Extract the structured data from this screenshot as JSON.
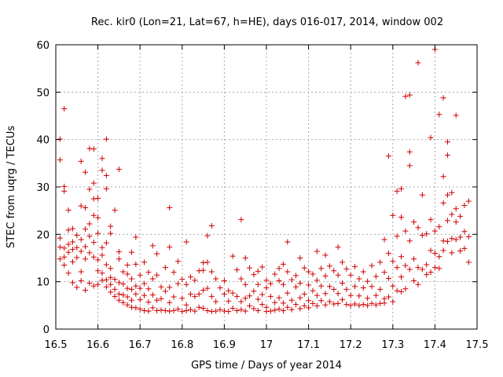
{
  "chart_data": {
    "type": "scatter",
    "title": "Rec. kir0 (Lon=21, Lat=67, h=HE), days 016-017, 2014, window 002",
    "xlabel": "GPS time / Days of year 2014",
    "ylabel": "STEC from uqrg / TECUs",
    "xlim": [
      16.5,
      17.5
    ],
    "ylim": [
      0,
      60
    ],
    "xticks": [
      "16.5",
      "16.6",
      "16.7",
      "16.8",
      "16.9",
      "17",
      "17.1",
      "17.2",
      "17.3",
      "17.4",
      "17.5"
    ],
    "yticks": [
      "0",
      "10",
      "20",
      "30",
      "40",
      "50",
      "60"
    ],
    "grid": true,
    "marker": "plus",
    "color": "#d00000",
    "points": [
      [
        16.51,
        35.7
      ],
      [
        16.51,
        40.1
      ],
      [
        16.51,
        19.2
      ],
      [
        16.51,
        17.3
      ],
      [
        16.51,
        14.8
      ],
      [
        16.52,
        46.5
      ],
      [
        16.52,
        30.1
      ],
      [
        16.52,
        29.1
      ],
      [
        16.52,
        17.1
      ],
      [
        16.52,
        15.2
      ],
      [
        16.52,
        13.5
      ],
      [
        16.53,
        25.1
      ],
      [
        16.53,
        20.9
      ],
      [
        16.53,
        17.9
      ],
      [
        16.53,
        16.2
      ],
      [
        16.53,
        11.8
      ],
      [
        16.54,
        21.2
      ],
      [
        16.54,
        18.4
      ],
      [
        16.54,
        16.8
      ],
      [
        16.54,
        14.2
      ],
      [
        16.54,
        9.8
      ],
      [
        16.55,
        19.8
      ],
      [
        16.55,
        17.2
      ],
      [
        16.55,
        15.1
      ],
      [
        16.55,
        8.8
      ],
      [
        16.56,
        35.4
      ],
      [
        16.56,
        26.0
      ],
      [
        16.56,
        18.9
      ],
      [
        16.56,
        16.4
      ],
      [
        16.56,
        12.1
      ],
      [
        16.56,
        10.2
      ],
      [
        16.57,
        33.1
      ],
      [
        16.57,
        25.6
      ],
      [
        16.57,
        21.1
      ],
      [
        16.57,
        17.4
      ],
      [
        16.57,
        14.8
      ],
      [
        16.57,
        8.2
      ],
      [
        16.58,
        38.1
      ],
      [
        16.58,
        29.5
      ],
      [
        16.58,
        22.2
      ],
      [
        16.58,
        19.6
      ],
      [
        16.58,
        16.1
      ],
      [
        16.58,
        9.7
      ],
      [
        16.59,
        38.0
      ],
      [
        16.59,
        30.8
      ],
      [
        16.59,
        27.5
      ],
      [
        16.59,
        24.0
      ],
      [
        16.59,
        18.3
      ],
      [
        16.59,
        15.2
      ],
      [
        16.59,
        9.1
      ],
      [
        16.6,
        27.6
      ],
      [
        16.6,
        23.5
      ],
      [
        16.6,
        20.2
      ],
      [
        16.6,
        14.6
      ],
      [
        16.6,
        12.3
      ],
      [
        16.6,
        9.4
      ],
      [
        16.61,
        36.0
      ],
      [
        16.61,
        33.5
      ],
      [
        16.61,
        17.2
      ],
      [
        16.61,
        15.6
      ],
      [
        16.61,
        11.8
      ],
      [
        16.61,
        10.3
      ],
      [
        16.62,
        40.1
      ],
      [
        16.62,
        32.4
      ],
      [
        16.62,
        29.6
      ],
      [
        16.62,
        18.2
      ],
      [
        16.62,
        13.6
      ],
      [
        16.62,
        10.4
      ],
      [
        16.62,
        8.9
      ],
      [
        16.63,
        21.7
      ],
      [
        16.63,
        20.2
      ],
      [
        16.63,
        12.8
      ],
      [
        16.63,
        10.9
      ],
      [
        16.63,
        9.4
      ],
      [
        16.63,
        7.8
      ],
      [
        16.64,
        25.1
      ],
      [
        16.64,
        10.5
      ],
      [
        16.64,
        8.4
      ],
      [
        16.64,
        6.9
      ],
      [
        16.65,
        33.7
      ],
      [
        16.65,
        16.3
      ],
      [
        16.65,
        14.8
      ],
      [
        16.65,
        9.8
      ],
      [
        16.65,
        7.4
      ],
      [
        16.65,
        6.1
      ],
      [
        16.66,
        12.1
      ],
      [
        16.66,
        9.5
      ],
      [
        16.66,
        7.2
      ],
      [
        16.66,
        5.6
      ],
      [
        16.67,
        13.5
      ],
      [
        16.67,
        11.6
      ],
      [
        16.67,
        8.6
      ],
      [
        16.67,
        6.8
      ],
      [
        16.67,
        5.1
      ],
      [
        16.68,
        16.2
      ],
      [
        16.68,
        10.6
      ],
      [
        16.68,
        8.4
      ],
      [
        16.68,
        6.1
      ],
      [
        16.68,
        4.6
      ],
      [
        16.69,
        19.4
      ],
      [
        16.69,
        13.7
      ],
      [
        16.69,
        9.1
      ],
      [
        16.69,
        7.4
      ],
      [
        16.69,
        4.5
      ],
      [
        16.7,
        11.4
      ],
      [
        16.7,
        8.6
      ],
      [
        16.7,
        6.2
      ],
      [
        16.7,
        4.2
      ],
      [
        16.71,
        14.1
      ],
      [
        16.71,
        9.6
      ],
      [
        16.71,
        7.1
      ],
      [
        16.71,
        3.9
      ],
      [
        16.72,
        12.0
      ],
      [
        16.72,
        8.5
      ],
      [
        16.72,
        5.7
      ],
      [
        16.72,
        3.8
      ],
      [
        16.73,
        17.6
      ],
      [
        16.73,
        10.6
      ],
      [
        16.73,
        7.2
      ],
      [
        16.73,
        4.5
      ],
      [
        16.74,
        15.9
      ],
      [
        16.74,
        11.4
      ],
      [
        16.74,
        6.1
      ],
      [
        16.74,
        3.9
      ],
      [
        16.75,
        8.9
      ],
      [
        16.75,
        6.4
      ],
      [
        16.75,
        4.0
      ],
      [
        16.76,
        13.0
      ],
      [
        16.76,
        8.0
      ],
      [
        16.76,
        3.9
      ],
      [
        16.77,
        25.6
      ],
      [
        16.77,
        17.3
      ],
      [
        16.77,
        8.8
      ],
      [
        16.77,
        5.6
      ],
      [
        16.77,
        3.8
      ],
      [
        16.78,
        12.0
      ],
      [
        16.78,
        6.8
      ],
      [
        16.78,
        3.9
      ],
      [
        16.79,
        14.3
      ],
      [
        16.79,
        9.6
      ],
      [
        16.79,
        4.2
      ],
      [
        16.8,
        10.5
      ],
      [
        16.8,
        6.5
      ],
      [
        16.8,
        3.7
      ],
      [
        16.81,
        18.4
      ],
      [
        16.81,
        9.4
      ],
      [
        16.81,
        5.1
      ],
      [
        16.81,
        3.9
      ],
      [
        16.82,
        11.0
      ],
      [
        16.82,
        7.4
      ],
      [
        16.82,
        4.1
      ],
      [
        16.83,
        10.3
      ],
      [
        16.83,
        6.9
      ],
      [
        16.83,
        3.8
      ],
      [
        16.84,
        12.3
      ],
      [
        16.84,
        7.4
      ],
      [
        16.84,
        4.6
      ],
      [
        16.85,
        14.0
      ],
      [
        16.85,
        12.4
      ],
      [
        16.85,
        8.2
      ],
      [
        16.85,
        4.4
      ],
      [
        16.86,
        19.7
      ],
      [
        16.86,
        14.1
      ],
      [
        16.86,
        8.6
      ],
      [
        16.86,
        3.9
      ],
      [
        16.87,
        21.8
      ],
      [
        16.87,
        12.1
      ],
      [
        16.87,
        6.9
      ],
      [
        16.87,
        3.7
      ],
      [
        16.88,
        10.6
      ],
      [
        16.88,
        5.8
      ],
      [
        16.88,
        3.8
      ],
      [
        16.89,
        8.7
      ],
      [
        16.89,
        4.1
      ],
      [
        16.9,
        10.2
      ],
      [
        16.9,
        7.4
      ],
      [
        16.9,
        3.8
      ],
      [
        16.91,
        8.1
      ],
      [
        16.91,
        5.9
      ],
      [
        16.91,
        3.7
      ],
      [
        16.92,
        15.4
      ],
      [
        16.92,
        7.6
      ],
      [
        16.92,
        4.4
      ],
      [
        16.93,
        12.5
      ],
      [
        16.93,
        6.9
      ],
      [
        16.93,
        3.9
      ],
      [
        16.94,
        23.1
      ],
      [
        16.94,
        10.6
      ],
      [
        16.94,
        5.8
      ],
      [
        16.94,
        4.1
      ],
      [
        16.95,
        15.0
      ],
      [
        16.95,
        9.4
      ],
      [
        16.95,
        6.5
      ],
      [
        16.95,
        3.8
      ],
      [
        16.96,
        12.9
      ],
      [
        16.96,
        7.0
      ],
      [
        16.96,
        4.9
      ],
      [
        16.97,
        11.5
      ],
      [
        16.97,
        8.0
      ],
      [
        16.97,
        4.3
      ],
      [
        16.98,
        12.2
      ],
      [
        16.98,
        9.4
      ],
      [
        16.98,
        6.3
      ],
      [
        16.98,
        3.9
      ],
      [
        16.99,
        13.1
      ],
      [
        16.99,
        7.3
      ],
      [
        16.99,
        5.2
      ],
      [
        17.0,
        10.3
      ],
      [
        17.0,
        8.7
      ],
      [
        17.0,
        4.6
      ],
      [
        17.0,
        3.7
      ],
      [
        17.01,
        9.6
      ],
      [
        17.01,
        6.9
      ],
      [
        17.01,
        3.8
      ],
      [
        17.02,
        11.6
      ],
      [
        17.02,
        5.6
      ],
      [
        17.02,
        4.0
      ],
      [
        17.03,
        12.8
      ],
      [
        17.03,
        10.2
      ],
      [
        17.03,
        6.6
      ],
      [
        17.03,
        4.2
      ],
      [
        17.04,
        13.7
      ],
      [
        17.04,
        9.4
      ],
      [
        17.04,
        5.5
      ],
      [
        17.04,
        3.9
      ],
      [
        17.05,
        18.4
      ],
      [
        17.05,
        12.1
      ],
      [
        17.05,
        7.6
      ],
      [
        17.05,
        4.6
      ],
      [
        17.06,
        10.4
      ],
      [
        17.06,
        6.1
      ],
      [
        17.06,
        4.1
      ],
      [
        17.07,
        11.3
      ],
      [
        17.07,
        8.9
      ],
      [
        17.07,
        5.2
      ],
      [
        17.08,
        15.0
      ],
      [
        17.08,
        9.7
      ],
      [
        17.08,
        6.6
      ],
      [
        17.08,
        4.3
      ],
      [
        17.09,
        12.9
      ],
      [
        17.09,
        7.4
      ],
      [
        17.09,
        4.9
      ],
      [
        17.1,
        12.1
      ],
      [
        17.1,
        9.3
      ],
      [
        17.1,
        6.0
      ],
      [
        17.1,
        4.5
      ],
      [
        17.11,
        11.6
      ],
      [
        17.11,
        8.1
      ],
      [
        17.11,
        5.4
      ],
      [
        17.12,
        16.4
      ],
      [
        17.12,
        10.3
      ],
      [
        17.12,
        7.1
      ],
      [
        17.12,
        4.9
      ],
      [
        17.13,
        12.8
      ],
      [
        17.13,
        9.1
      ],
      [
        17.13,
        6.0
      ],
      [
        17.14,
        15.6
      ],
      [
        17.14,
        11.2
      ],
      [
        17.14,
        7.5
      ],
      [
        17.14,
        5.1
      ],
      [
        17.15,
        13.3
      ],
      [
        17.15,
        9.0
      ],
      [
        17.15,
        5.8
      ],
      [
        17.16,
        12.3
      ],
      [
        17.16,
        8.4
      ],
      [
        17.16,
        5.3
      ],
      [
        17.17,
        17.3
      ],
      [
        17.17,
        11.4
      ],
      [
        17.17,
        7.5
      ],
      [
        17.17,
        5.4
      ],
      [
        17.18,
        14.1
      ],
      [
        17.18,
        9.7
      ],
      [
        17.18,
        6.2
      ],
      [
        17.19,
        12.7
      ],
      [
        17.19,
        8.4
      ],
      [
        17.19,
        5.2
      ],
      [
        17.2,
        11.4
      ],
      [
        17.2,
        7.1
      ],
      [
        17.2,
        5.0
      ],
      [
        17.21,
        13.2
      ],
      [
        17.21,
        9.0
      ],
      [
        17.21,
        5.3
      ],
      [
        17.22,
        10.6
      ],
      [
        17.22,
        7.0
      ],
      [
        17.22,
        5.0
      ],
      [
        17.23,
        12.1
      ],
      [
        17.23,
        8.7
      ],
      [
        17.23,
        5.2
      ],
      [
        17.24,
        10.1
      ],
      [
        17.24,
        6.5
      ],
      [
        17.24,
        5.0
      ],
      [
        17.25,
        13.4
      ],
      [
        17.25,
        9.0
      ],
      [
        17.25,
        5.4
      ],
      [
        17.26,
        11.1
      ],
      [
        17.26,
        7.1
      ],
      [
        17.26,
        5.1
      ],
      [
        17.27,
        14.1
      ],
      [
        17.27,
        8.4
      ],
      [
        17.27,
        5.4
      ],
      [
        17.28,
        18.9
      ],
      [
        17.28,
        12.0
      ],
      [
        17.28,
        6.4
      ],
      [
        17.28,
        5.5
      ],
      [
        17.29,
        36.5
      ],
      [
        17.29,
        16.0
      ],
      [
        17.29,
        10.7
      ],
      [
        17.29,
        6.8
      ],
      [
        17.3,
        24.0
      ],
      [
        17.3,
        14.3
      ],
      [
        17.3,
        9.1
      ],
      [
        17.3,
        5.8
      ],
      [
        17.31,
        29.1
      ],
      [
        17.31,
        19.6
      ],
      [
        17.31,
        13.0
      ],
      [
        17.31,
        8.1
      ],
      [
        17.32,
        29.6
      ],
      [
        17.32,
        23.6
      ],
      [
        17.32,
        15.3
      ],
      [
        17.32,
        11.0
      ],
      [
        17.32,
        7.9
      ],
      [
        17.33,
        49.1
      ],
      [
        17.33,
        20.7
      ],
      [
        17.33,
        13.4
      ],
      [
        17.33,
        8.5
      ],
      [
        17.34,
        49.4
      ],
      [
        17.34,
        37.4
      ],
      [
        17.34,
        34.5
      ],
      [
        17.34,
        18.6
      ],
      [
        17.34,
        12.6
      ],
      [
        17.35,
        22.6
      ],
      [
        17.35,
        14.8
      ],
      [
        17.35,
        10.2
      ],
      [
        17.36,
        56.2
      ],
      [
        17.36,
        21.4
      ],
      [
        17.36,
        13.0
      ],
      [
        17.36,
        9.4
      ],
      [
        17.37,
        28.3
      ],
      [
        17.37,
        19.8
      ],
      [
        17.37,
        12.6
      ],
      [
        17.38,
        20.1
      ],
      [
        17.38,
        13.6
      ],
      [
        17.38,
        11.5
      ],
      [
        17.39,
        40.4
      ],
      [
        17.39,
        23.1
      ],
      [
        17.39,
        16.6
      ],
      [
        17.39,
        12.0
      ],
      [
        17.4,
        59.0
      ],
      [
        17.4,
        20.7
      ],
      [
        17.4,
        16.0
      ],
      [
        17.4,
        13.0
      ],
      [
        17.41,
        45.3
      ],
      [
        17.41,
        21.6
      ],
      [
        17.41,
        15.3
      ],
      [
        17.41,
        12.8
      ],
      [
        17.42,
        48.8
      ],
      [
        17.42,
        32.2
      ],
      [
        17.42,
        26.6
      ],
      [
        17.42,
        18.6
      ],
      [
        17.42,
        16.6
      ],
      [
        17.43,
        39.5
      ],
      [
        17.43,
        36.7
      ],
      [
        17.43,
        28.3
      ],
      [
        17.43,
        22.9
      ],
      [
        17.43,
        18.5
      ],
      [
        17.44,
        28.8
      ],
      [
        17.44,
        24.2
      ],
      [
        17.44,
        19.1
      ],
      [
        17.44,
        16.1
      ],
      [
        17.45,
        45.1
      ],
      [
        17.45,
        25.4
      ],
      [
        17.45,
        22.6
      ],
      [
        17.45,
        18.9
      ],
      [
        17.46,
        23.8
      ],
      [
        17.46,
        19.4
      ],
      [
        17.46,
        16.5
      ],
      [
        17.47,
        26.1
      ],
      [
        17.47,
        20.6
      ],
      [
        17.47,
        17.0
      ],
      [
        17.48,
        27.0
      ],
      [
        17.48,
        19.5
      ],
      [
        17.48,
        14.1
      ]
    ]
  }
}
